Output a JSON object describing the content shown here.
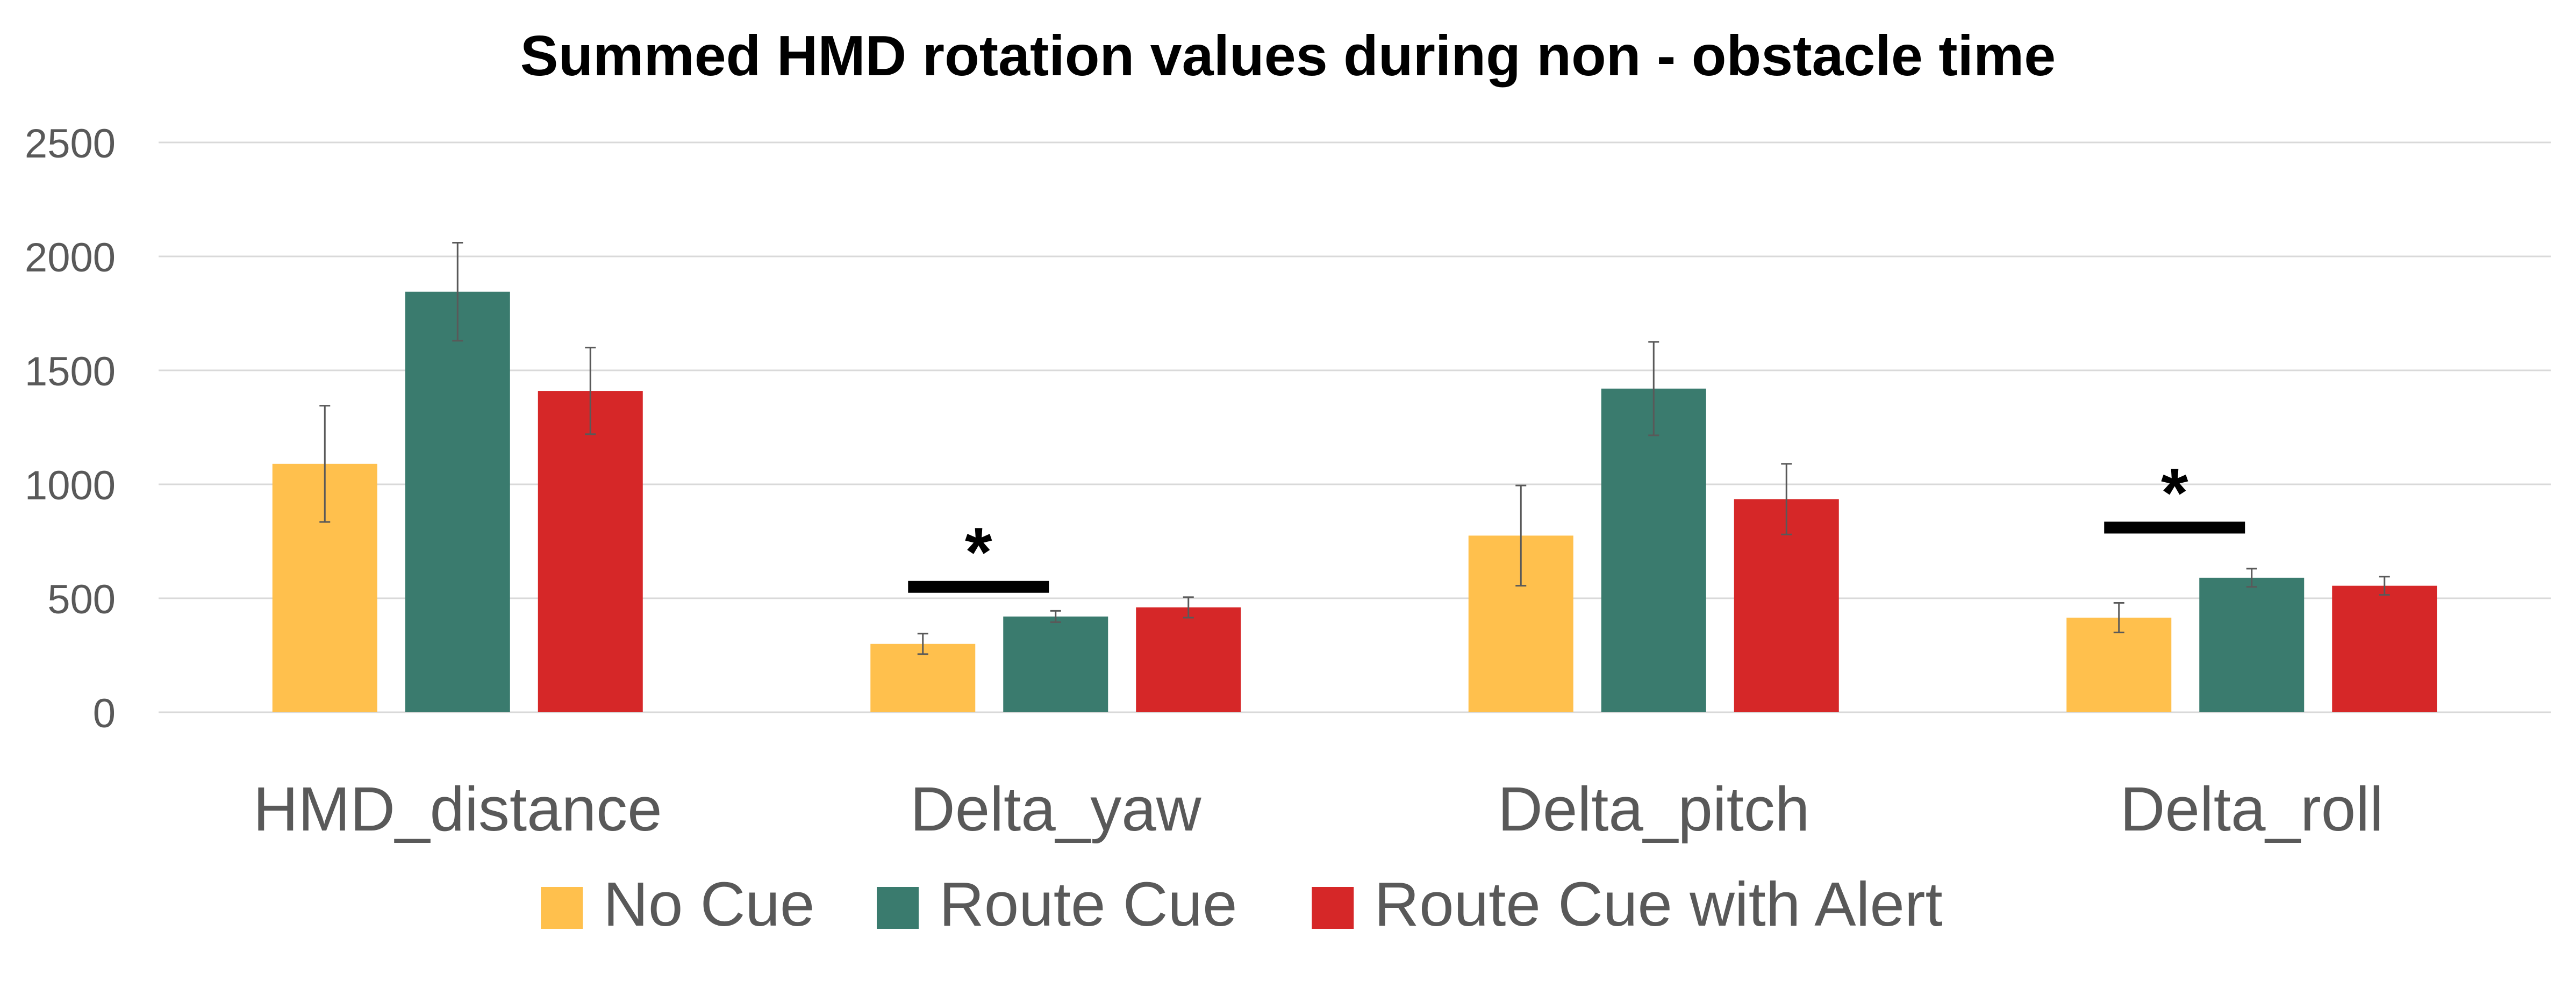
{
  "chart_data": {
    "type": "bar",
    "title": "Summed HMD rotation values during non - obstacle time",
    "xlabel": "",
    "ylabel": "",
    "ylim": [
      0,
      2500
    ],
    "yticks": [
      "0",
      "500",
      "1000",
      "1500",
      "2000",
      "2500"
    ],
    "grid": true,
    "legend_position": "bottom",
    "categories": [
      "HMD_distance",
      "Delta_yaw",
      "Delta_pitch",
      "Delta_roll"
    ],
    "series": [
      {
        "name": "No Cue",
        "color": "#FFC04D",
        "values": [
          1090,
          300,
          775,
          415
        ],
        "error": [
          255,
          45,
          220,
          65
        ]
      },
      {
        "name": "Route Cue",
        "color": "#3A7B6E",
        "values": [
          1845,
          420,
          1420,
          590
        ],
        "error": [
          215,
          25,
          205,
          40
        ]
      },
      {
        "name": "Route Cue with Alert",
        "color": "#D62728",
        "values": [
          1410,
          460,
          935,
          555
        ],
        "error": [
          190,
          45,
          155,
          40
        ]
      }
    ],
    "significance": [
      {
        "category_index": 1,
        "from_series": 0,
        "to_series": 1,
        "label": "*",
        "level": 550
      },
      {
        "category_index": 3,
        "from_series": 0,
        "to_series": 1,
        "label": "*",
        "level": 810
      }
    ]
  }
}
